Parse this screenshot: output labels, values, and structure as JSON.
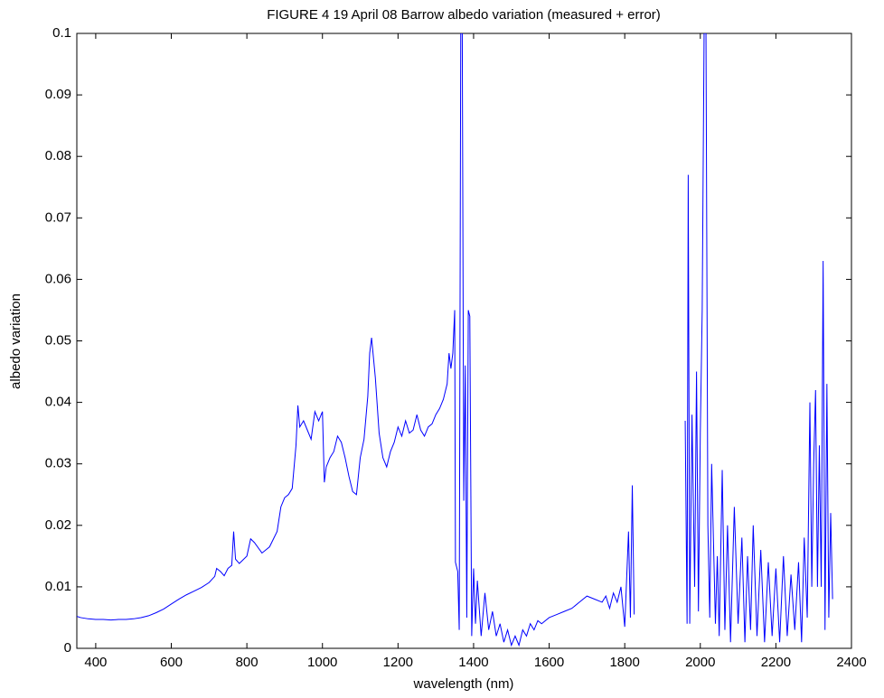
{
  "chart_data": {
    "type": "line",
    "title": "FIGURE 4  19 April 08 Barrow albedo variation (measured + error)",
    "xlabel": "wavelength (nm)",
    "ylabel": "albedo variation",
    "color": "#0000ff",
    "xlim": [
      350,
      2400
    ],
    "ylim": [
      0,
      0.1
    ],
    "xticks": [
      400,
      600,
      800,
      1000,
      1200,
      1400,
      1600,
      1800,
      2000,
      2200,
      2400
    ],
    "yticks": [
      0,
      0.01,
      0.02,
      0.03,
      0.04,
      0.05,
      0.06,
      0.07,
      0.08,
      0.09,
      0.1
    ],
    "x": [
      350,
      360,
      380,
      400,
      420,
      440,
      460,
      480,
      500,
      520,
      540,
      560,
      580,
      600,
      620,
      640,
      660,
      680,
      700,
      715,
      720,
      730,
      740,
      750,
      760,
      765,
      770,
      780,
      800,
      810,
      820,
      840,
      860,
      880,
      890,
      900,
      910,
      920,
      930,
      935,
      940,
      950,
      960,
      970,
      980,
      990,
      1000,
      1005,
      1010,
      1020,
      1030,
      1040,
      1050,
      1060,
      1070,
      1080,
      1090,
      1100,
      1110,
      1120,
      1125,
      1130,
      1140,
      1150,
      1160,
      1170,
      1180,
      1190,
      1200,
      1210,
      1220,
      1230,
      1240,
      1250,
      1260,
      1270,
      1280,
      1290,
      1300,
      1310,
      1320,
      1330,
      1335,
      1340,
      1345,
      1350,
      1352,
      1358,
      1362,
      1366,
      1370,
      1374,
      1378,
      1382,
      1386,
      1390,
      1395,
      1400,
      1405,
      1410,
      1420,
      1430,
      1440,
      1450,
      1460,
      1470,
      1480,
      1490,
      1500,
      1510,
      1520,
      1530,
      1540,
      1550,
      1560,
      1570,
      1580,
      1600,
      1620,
      1640,
      1660,
      1680,
      1700,
      1720,
      1740,
      1750,
      1760,
      1770,
      1780,
      1790,
      1800,
      1810,
      1815,
      1820,
      1825,
      1890,
      1960,
      1965,
      1968,
      1972,
      1978,
      1985,
      1990,
      1995,
      2000,
      2005,
      2010,
      2015,
      2020,
      2025,
      2030,
      2040,
      2045,
      2050,
      2058,
      2065,
      2072,
      2080,
      2090,
      2100,
      2110,
      2118,
      2125,
      2133,
      2140,
      2150,
      2160,
      2170,
      2180,
      2190,
      2200,
      2210,
      2220,
      2230,
      2240,
      2250,
      2260,
      2268,
      2275,
      2283,
      2290,
      2295,
      2300,
      2305,
      2310,
      2315,
      2320,
      2325,
      2330,
      2335,
      2340,
      2345,
      2350
    ],
    "values": [
      0.0052,
      0.005,
      0.0048,
      0.0047,
      0.0047,
      0.0046,
      0.0047,
      0.0047,
      0.0048,
      0.005,
      0.0053,
      0.0058,
      0.0064,
      0.0072,
      0.008,
      0.0087,
      0.0093,
      0.0099,
      0.0107,
      0.0117,
      0.013,
      0.0125,
      0.0118,
      0.013,
      0.0135,
      0.019,
      0.0145,
      0.0138,
      0.015,
      0.0178,
      0.0172,
      0.0155,
      0.0165,
      0.019,
      0.023,
      0.0245,
      0.025,
      0.026,
      0.033,
      0.0395,
      0.036,
      0.037,
      0.0355,
      0.034,
      0.0385,
      0.037,
      0.0385,
      0.027,
      0.0295,
      0.031,
      0.032,
      0.0345,
      0.0335,
      0.031,
      0.028,
      0.0255,
      0.025,
      0.031,
      0.034,
      0.041,
      0.048,
      0.0505,
      0.044,
      0.035,
      0.031,
      0.0295,
      0.032,
      0.0335,
      0.036,
      0.0345,
      0.037,
      0.035,
      0.0355,
      0.038,
      0.0355,
      0.0345,
      0.036,
      0.0365,
      0.038,
      0.039,
      0.0405,
      0.043,
      0.048,
      0.0455,
      0.048,
      0.055,
      0.014,
      0.0125,
      0.003,
      0.1,
      0.1,
      0.024,
      0.046,
      0.005,
      0.055,
      0.054,
      0.002,
      0.013,
      0.004,
      0.011,
      0.002,
      0.009,
      0.003,
      0.006,
      0.002,
      0.004,
      0.001,
      0.003,
      0.0005,
      0.002,
      0.0005,
      0.003,
      0.002,
      0.004,
      0.003,
      0.0045,
      0.004,
      0.005,
      0.0055,
      0.006,
      0.0065,
      0.0075,
      0.0085,
      0.008,
      0.0075,
      0.0085,
      0.0065,
      0.009,
      0.0075,
      0.01,
      0.0035,
      0.019,
      0.005,
      0.0265,
      0.0055,
      null,
      0.037,
      0.004,
      0.077,
      0.004,
      0.038,
      0.01,
      0.045,
      0.006,
      0.035,
      0.055,
      0.1,
      0.1,
      0.02,
      0.005,
      0.03,
      0.004,
      0.015,
      0.002,
      0.029,
      0.003,
      0.02,
      0.001,
      0.023,
      0.004,
      0.018,
      0.001,
      0.015,
      0.003,
      0.02,
      0.002,
      0.016,
      0.001,
      0.014,
      0.002,
      0.013,
      0.001,
      0.015,
      0.002,
      0.012,
      0.003,
      0.014,
      0.001,
      0.018,
      0.005,
      0.04,
      0.01,
      0.03,
      0.042,
      0.01,
      0.033,
      0.01,
      0.063,
      0.003,
      0.043,
      0.005,
      0.022,
      0.008
    ]
  }
}
